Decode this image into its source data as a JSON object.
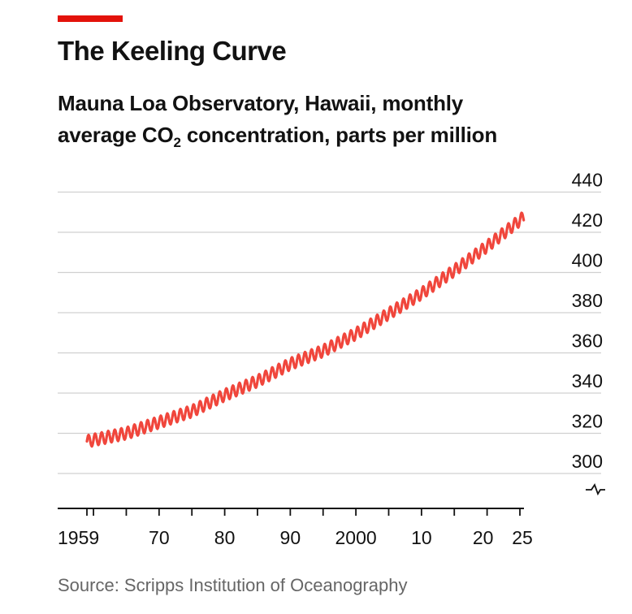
{
  "header": {
    "title": "The Keeling Curve",
    "subtitle_line1": "Mauna Loa Observatory, Hawaii, monthly",
    "subtitle_line2_pre": "average CO",
    "subtitle_sub": "2",
    "subtitle_line2_post": " concentration, parts per million"
  },
  "footer": {
    "source": "Source: Scripps Institution of Oceanography"
  },
  "colors": {
    "accent": "#e3120b",
    "line": "#f0463c",
    "grid": "#d0d0d0",
    "axis": "#121212",
    "text": "#121212",
    "source_text": "#666666"
  },
  "chart_data": {
    "type": "line",
    "title": "The Keeling Curve",
    "xlabel": "",
    "ylabel": "parts per million",
    "xlim": [
      1958,
      2026
    ],
    "ylim": [
      280,
      440
    ],
    "y_ticks": [
      300,
      320,
      340,
      360,
      380,
      400,
      420,
      440
    ],
    "y_tick_labels": [
      "300",
      "320",
      "340",
      "360",
      "380",
      "400",
      "420",
      "440"
    ],
    "y_axis_break": true,
    "x_ticks_labeled": [
      1959,
      1970,
      1980,
      1990,
      2000,
      2010,
      2020,
      2025
    ],
    "x_tick_labels": [
      "1959",
      "70",
      "80",
      "90",
      "2000",
      "10",
      "20",
      "25"
    ],
    "grid": true,
    "series": [
      {
        "name": "Monthly average CO2 (ppm)",
        "seasonal_amplitude_ppm": 3,
        "trend_points": [
          {
            "year": 1959,
            "ppm": 316
          },
          {
            "year": 1965,
            "ppm": 320
          },
          {
            "year": 1970,
            "ppm": 325.5
          },
          {
            "year": 1975,
            "ppm": 331
          },
          {
            "year": 1980,
            "ppm": 339
          },
          {
            "year": 1985,
            "ppm": 346
          },
          {
            "year": 1990,
            "ppm": 354.5
          },
          {
            "year": 1995,
            "ppm": 361
          },
          {
            "year": 2000,
            "ppm": 369.5
          },
          {
            "year": 2005,
            "ppm": 379.5
          },
          {
            "year": 2010,
            "ppm": 389.5
          },
          {
            "year": 2015,
            "ppm": 401
          },
          {
            "year": 2020,
            "ppm": 413
          },
          {
            "year": 2025,
            "ppm": 426
          }
        ]
      }
    ]
  }
}
